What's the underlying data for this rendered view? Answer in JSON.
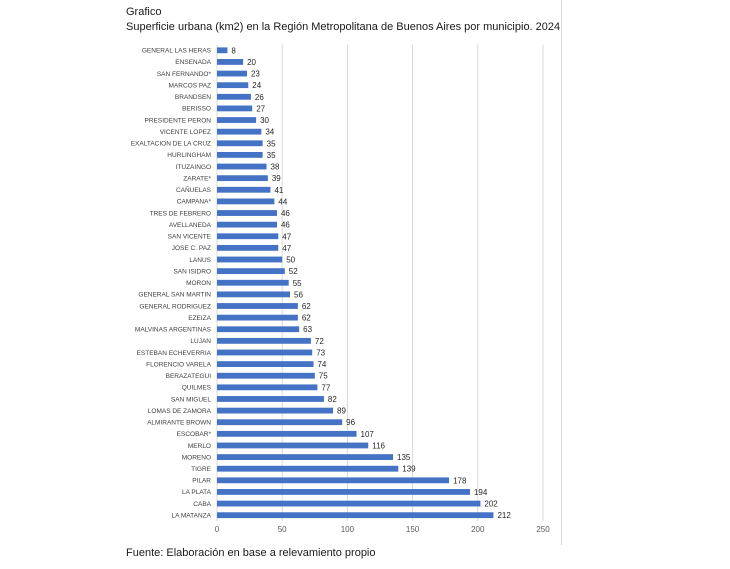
{
  "heading": "Grafico",
  "source": "Fuente: Elaboración en base a relevamiento propio",
  "colors": {
    "bar": "#4472c4",
    "grid": "#d9d9d9"
  },
  "chart_data": {
    "type": "bar",
    "orientation": "horizontal",
    "title": "Superficie urbana (km2) en la Región Metropolitana de Buenos Aires por municipio. 2024",
    "xlabel": "",
    "ylabel": "",
    "xlim": [
      0,
      250
    ],
    "xticks": [
      0,
      50,
      100,
      150,
      200,
      250
    ],
    "grid": "vertical",
    "legend": "none",
    "categories": [
      "GENERAL LAS HERAS",
      "ENSENADA",
      "SAN FERNANDO*",
      "MARCOS PAZ",
      "BRANDSEN",
      "BERISSO",
      "PRESIDENTE PERON",
      "VICENTE LOPEZ",
      "EXALTACION DE LA CRUZ",
      "HURLINGHAM",
      "ITUZAINGO",
      "ZARATE*",
      "CAÑUELAS",
      "CAMPANA*",
      "TRES DE FEBRERO",
      "AVELLANEDA",
      "SAN VICENTE",
      "JOSE C. PAZ",
      "LANUS",
      "SAN ISIDRO",
      "MORON",
      "GENERAL SAN MARTIN",
      "GENERAL RODRIGUEZ",
      "EZEIZA",
      "MALVINAS ARGENTINAS",
      "LUJAN",
      "ESTEBAN ECHEVERRIA",
      "FLORENCIO VARELA",
      "BERAZATEGUI",
      "QUILMES",
      "SAN MIGUEL",
      "LOMAS DE ZAMORA",
      "ALMIRANTE BROWN",
      "ESCOBAR*",
      "MERLO",
      "MORENO",
      "TIGRE",
      "PILAR",
      "LA PLATA",
      "CABA",
      "LA MATANZA"
    ],
    "values": [
      8,
      20,
      23,
      24,
      26,
      27,
      30,
      34,
      35,
      35,
      38,
      39,
      41,
      44,
      46,
      46,
      47,
      47,
      50,
      52,
      55,
      56,
      62,
      62,
      63,
      72,
      73,
      74,
      75,
      77,
      82,
      89,
      96,
      107,
      116,
      135,
      139,
      178,
      194,
      202,
      212
    ]
  }
}
